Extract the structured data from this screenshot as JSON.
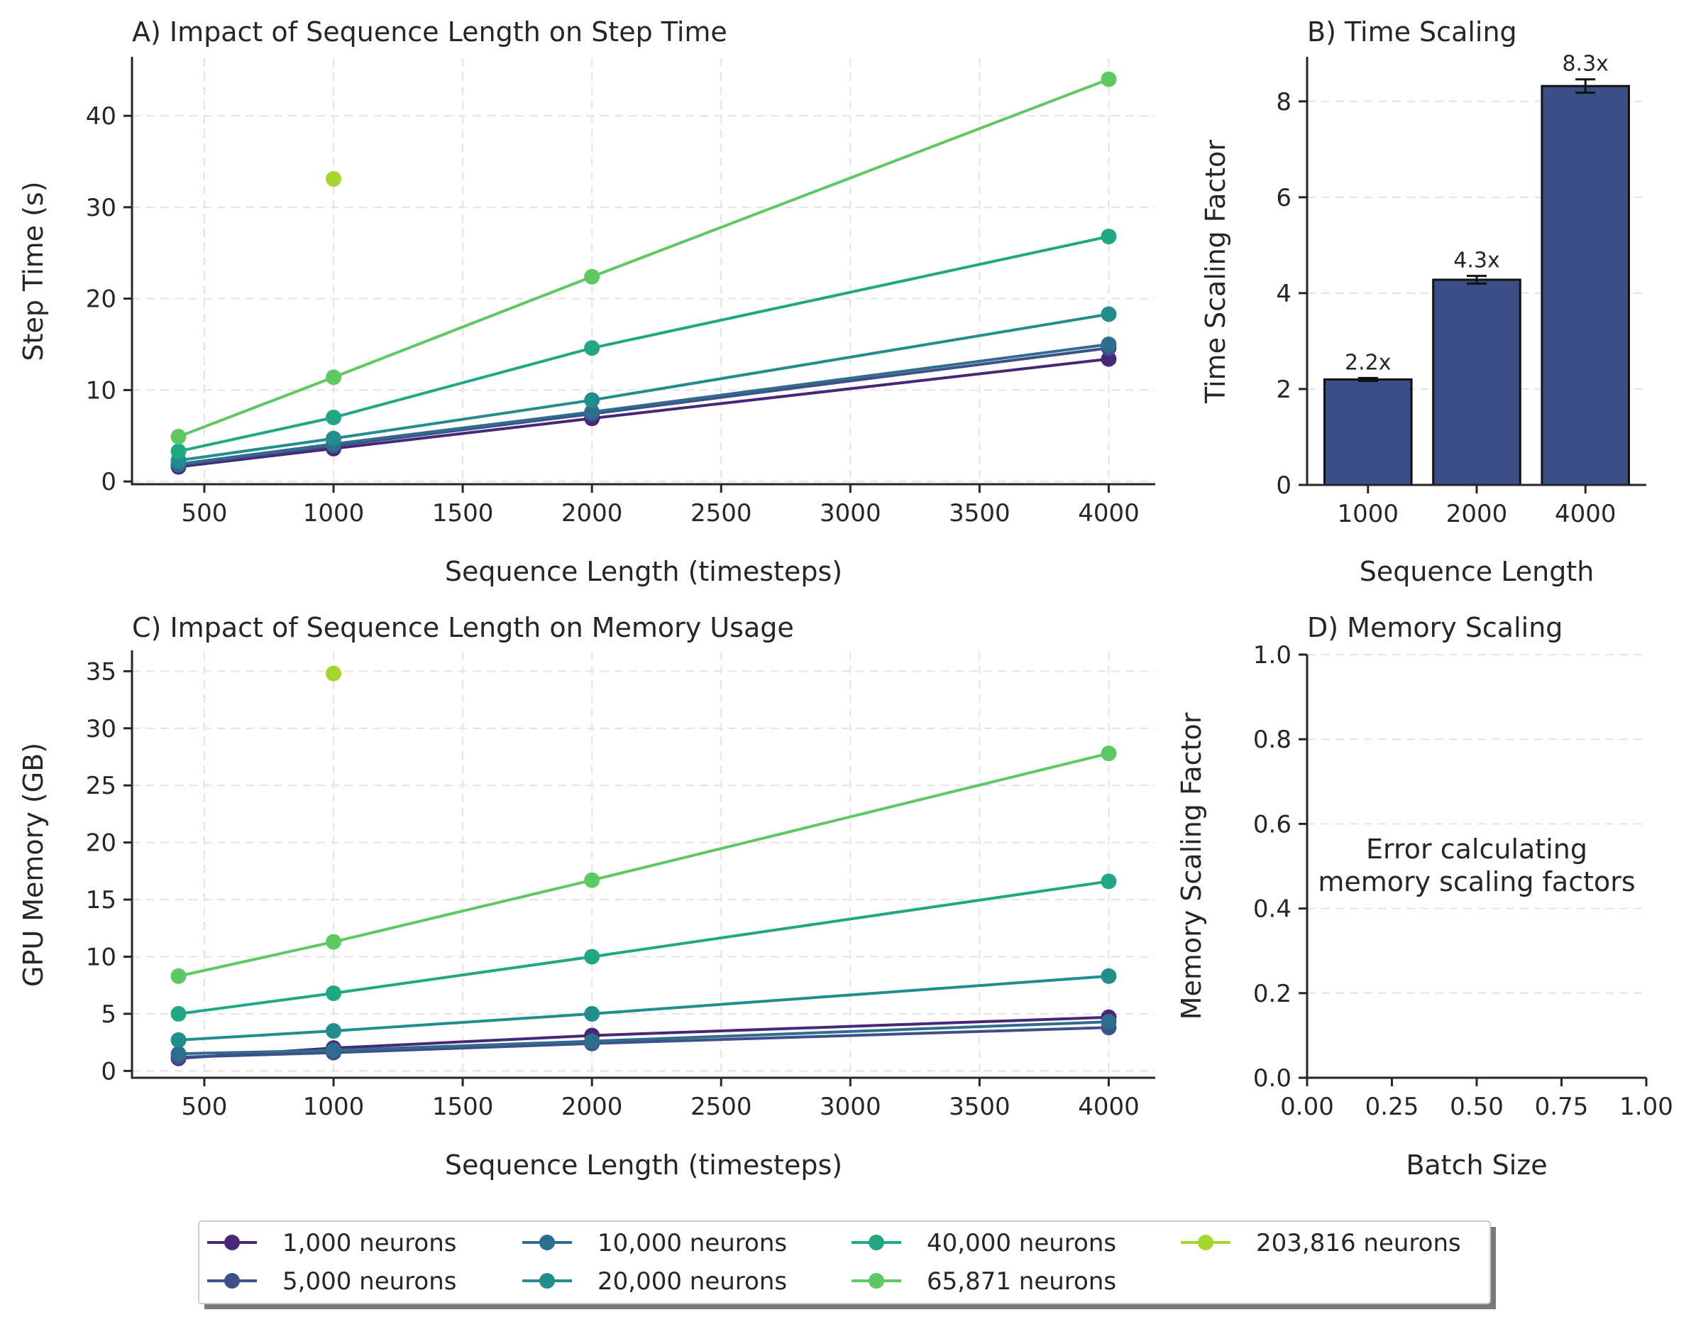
{
  "figure": {
    "series_colors": [
      "#482777",
      "#3e4f8a",
      "#2e6d8e",
      "#218e8d",
      "#22a784",
      "#5ec962",
      "#a6d62d"
    ],
    "legend": {
      "entries": [
        "1,000 neurons",
        "5,000 neurons",
        "10,000 neurons",
        "20,000 neurons",
        "40,000 neurons",
        "65,871 neurons",
        "203,816 neurons"
      ],
      "placement": "bottom-center"
    }
  },
  "chart_data": [
    {
      "id": "A",
      "type": "line",
      "title": "A) Impact of Sequence Length on Step Time",
      "xlabel": "Sequence Length (timesteps)",
      "ylabel": "Step Time (s)",
      "xlim": [
        220,
        4180
      ],
      "ylim": [
        -0.3,
        46.3
      ],
      "xticks": [
        500,
        1000,
        1500,
        2000,
        2500,
        3000,
        3500,
        4000
      ],
      "yticks": [
        0,
        10,
        20,
        30,
        40
      ],
      "grid": true,
      "series": [
        {
          "name": "1,000 neurons",
          "x": [
            400,
            1000,
            2000,
            4000
          ],
          "y": [
            1.6,
            3.6,
            6.9,
            13.4
          ]
        },
        {
          "name": "5,000 neurons",
          "x": [
            400,
            1000,
            2000,
            4000
          ],
          "y": [
            1.8,
            3.9,
            7.4,
            14.6
          ]
        },
        {
          "name": "10,000 neurons",
          "x": [
            400,
            1000,
            2000,
            4000
          ],
          "y": [
            1.9,
            4.1,
            7.6,
            15.0
          ]
        },
        {
          "name": "20,000 neurons",
          "x": [
            400,
            1000,
            2000,
            4000
          ],
          "y": [
            2.3,
            4.7,
            8.9,
            18.3
          ]
        },
        {
          "name": "40,000 neurons",
          "x": [
            400,
            1000,
            2000,
            4000
          ],
          "y": [
            3.3,
            7.0,
            14.6,
            26.8
          ]
        },
        {
          "name": "65,871 neurons",
          "x": [
            400,
            1000,
            2000,
            4000
          ],
          "y": [
            4.9,
            11.4,
            22.4,
            44.0
          ]
        },
        {
          "name": "203,816 neurons",
          "x": [
            1000
          ],
          "y": [
            33.1
          ]
        }
      ]
    },
    {
      "id": "B",
      "type": "bar",
      "title": "B) Time Scaling",
      "xlabel": "Sequence Length",
      "ylabel": "Time Scaling Factor",
      "categories": [
        "1000",
        "2000",
        "4000"
      ],
      "values": [
        2.2,
        4.28,
        8.32
      ],
      "errors": [
        0.03,
        0.08,
        0.14
      ],
      "labels": [
        "2.2x",
        "4.3x",
        "8.3x"
      ],
      "ylim": [
        0,
        8.9
      ],
      "yticks": [
        0,
        2,
        4,
        6,
        8
      ],
      "bar_color": "#3b4f86",
      "grid": true
    },
    {
      "id": "C",
      "type": "line",
      "title": "C) Impact of Sequence Length on Memory Usage",
      "xlabel": "Sequence Length (timesteps)",
      "ylabel": "GPU Memory (GB)",
      "xlim": [
        220,
        4180
      ],
      "ylim": [
        -0.6,
        36.7
      ],
      "xticks": [
        500,
        1000,
        1500,
        2000,
        2500,
        3000,
        3500,
        4000
      ],
      "yticks": [
        0,
        5,
        10,
        15,
        20,
        25,
        30,
        35
      ],
      "grid": true,
      "series": [
        {
          "name": "1,000 neurons",
          "x": [
            400,
            1000,
            2000,
            4000
          ],
          "y": [
            1.1,
            2.0,
            3.1,
            4.7
          ]
        },
        {
          "name": "5,000 neurons",
          "x": [
            400,
            1000,
            2000,
            4000
          ],
          "y": [
            1.2,
            1.6,
            2.4,
            3.8
          ]
        },
        {
          "name": "10,000 neurons",
          "x": [
            400,
            1000,
            2000,
            4000
          ],
          "y": [
            1.5,
            1.8,
            2.6,
            4.3
          ]
        },
        {
          "name": "20,000 neurons",
          "x": [
            400,
            1000,
            2000,
            4000
          ],
          "y": [
            2.7,
            3.5,
            5.0,
            8.3
          ]
        },
        {
          "name": "40,000 neurons",
          "x": [
            400,
            1000,
            2000,
            4000
          ],
          "y": [
            5.0,
            6.8,
            10.0,
            16.6
          ]
        },
        {
          "name": "65,871 neurons",
          "x": [
            400,
            1000,
            2000,
            4000
          ],
          "y": [
            8.3,
            11.3,
            16.7,
            27.8
          ]
        },
        {
          "name": "203,816 neurons",
          "x": [
            1000
          ],
          "y": [
            34.8
          ]
        }
      ]
    },
    {
      "id": "D",
      "type": "line",
      "title": "D) Memory Scaling",
      "xlabel": "Batch Size",
      "ylabel": "Memory Scaling Factor",
      "xlim": [
        0,
        1
      ],
      "ylim": [
        0,
        1
      ],
      "xticks": [
        "0.00",
        "0.25",
        "0.50",
        "0.75",
        "1.00"
      ],
      "yticks": [
        "0.0",
        "0.2",
        "0.4",
        "0.6",
        "0.8",
        "1.0"
      ],
      "grid": true,
      "series": [],
      "message": [
        "Error calculating",
        "memory scaling factors"
      ]
    }
  ]
}
